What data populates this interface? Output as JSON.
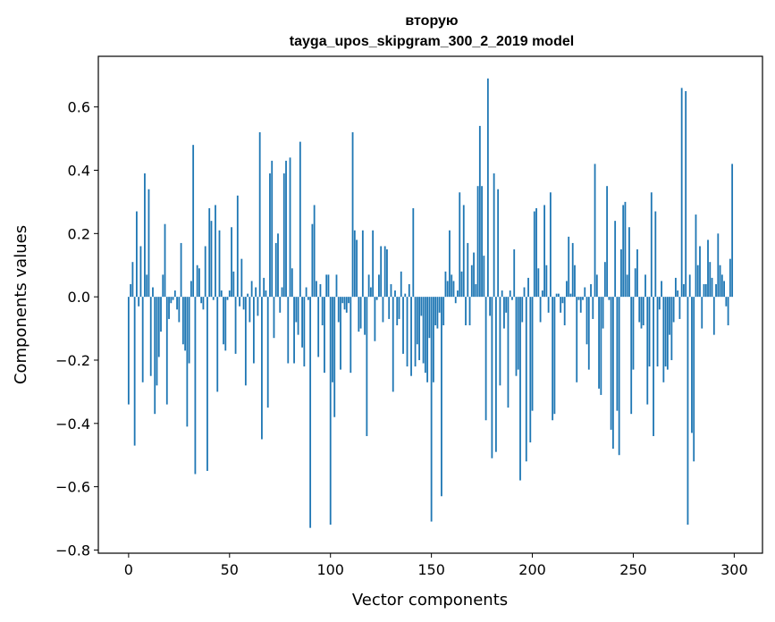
{
  "chart_data": {
    "type": "bar",
    "title_line1": "вторую",
    "title_line2": "tayga_upos_skipgram_300_2_2019 model",
    "xlabel": "Vector components",
    "ylabel": "Components values",
    "xlim": [
      -15,
      314
    ],
    "ylim": [
      -0.81,
      0.76
    ],
    "xticks": [
      0,
      50,
      100,
      150,
      200,
      250,
      300
    ],
    "yticks": [
      -0.8,
      -0.6,
      -0.4,
      -0.2,
      0.0,
      0.2,
      0.4,
      0.6
    ],
    "ytick_labels": [
      "−0.8",
      "−0.6",
      "−0.4",
      "−0.2",
      "0.0",
      "0.2",
      "0.4",
      "0.6"
    ],
    "bar_color": "#1f77b4",
    "grid": false,
    "values": [
      -0.34,
      0.04,
      0.11,
      -0.47,
      0.27,
      -0.03,
      0.16,
      -0.27,
      0.39,
      0.07,
      0.34,
      -0.25,
      0.03,
      -0.37,
      -0.28,
      -0.19,
      -0.11,
      0.07,
      0.23,
      -0.34,
      -0.07,
      -0.02,
      -0.01,
      0.02,
      -0.04,
      -0.08,
      0.17,
      -0.15,
      -0.17,
      -0.41,
      -0.21,
      0.05,
      0.48,
      -0.56,
      0.1,
      0.09,
      -0.02,
      -0.04,
      0.16,
      -0.55,
      0.28,
      0.24,
      -0.01,
      0.29,
      -0.3,
      0.21,
      0.02,
      -0.15,
      -0.17,
      -0.01,
      0.02,
      0.22,
      0.08,
      -0.18,
      0.32,
      -0.03,
      0.12,
      -0.04,
      -0.28,
      0.01,
      -0.08,
      0.05,
      -0.21,
      0.03,
      -0.06,
      0.52,
      -0.45,
      0.06,
      0.02,
      -0.35,
      0.39,
      0.43,
      -0.13,
      0.17,
      0.2,
      -0.05,
      0.03,
      0.39,
      0.43,
      -0.21,
      0.44,
      0.09,
      -0.21,
      -0.08,
      -0.12,
      0.49,
      -0.16,
      -0.22,
      0.03,
      -0.01,
      -0.73,
      0.23,
      0.29,
      0.05,
      -0.19,
      0.04,
      -0.09,
      -0.24,
      0.07,
      0.07,
      -0.72,
      -0.27,
      -0.38,
      0.07,
      -0.08,
      -0.23,
      -0.02,
      -0.04,
      -0.05,
      -0.02,
      -0.24,
      0.52,
      0.21,
      0.18,
      -0.11,
      -0.1,
      0.21,
      -0.12,
      -0.44,
      0.07,
      0.03,
      0.21,
      -0.14,
      -0.01,
      0.07,
      0.16,
      -0.08,
      0.16,
      0.15,
      -0.07,
      0.04,
      -0.3,
      0.02,
      -0.09,
      -0.07,
      0.08,
      -0.18,
      0.01,
      -0.22,
      0.04,
      -0.25,
      0.28,
      -0.22,
      -0.15,
      -0.2,
      -0.06,
      -0.21,
      -0.24,
      -0.27,
      -0.13,
      -0.71,
      -0.27,
      -0.09,
      -0.1,
      -0.05,
      -0.63,
      -0.09,
      0.08,
      0.05,
      0.21,
      0.07,
      0.05,
      -0.02,
      0.02,
      0.33,
      0.08,
      0.29,
      -0.09,
      0.17,
      -0.09,
      0.1,
      0.14,
      0.04,
      0.35,
      0.54,
      0.35,
      0.13,
      -0.39,
      0.69,
      -0.06,
      -0.51,
      0.39,
      -0.49,
      0.34,
      -0.28,
      0.02,
      -0.1,
      -0.05,
      -0.35,
      0.02,
      -0.01,
      0.15,
      -0.25,
      -0.23,
      -0.58,
      -0.08,
      0.03,
      -0.52,
      0.06,
      -0.46,
      -0.36,
      0.27,
      0.28,
      0.09,
      -0.08,
      0.02,
      0.29,
      0.1,
      -0.05,
      0.33,
      -0.39,
      -0.37,
      0.01,
      0.01,
      -0.05,
      -0.02,
      -0.09,
      0.05,
      0.19,
      0.01,
      0.17,
      0.1,
      -0.27,
      -0.01,
      -0.05,
      -0.01,
      0.03,
      -0.15,
      -0.23,
      0.04,
      -0.07,
      0.42,
      0.07,
      -0.29,
      -0.31,
      -0.1,
      0.11,
      0.35,
      -0.01,
      -0.42,
      -0.48,
      0.24,
      -0.36,
      -0.5,
      0.15,
      0.29,
      0.3,
      0.07,
      0.22,
      -0.37,
      -0.23,
      0.09,
      0.15,
      -0.08,
      -0.1,
      -0.09,
      0.07,
      -0.34,
      -0.22,
      0.33,
      -0.44,
      0.27,
      -0.22,
      -0.04,
      0.05,
      -0.27,
      -0.22,
      -0.23,
      -0.12,
      -0.2,
      -0.08,
      0.06,
      0.02,
      -0.07,
      0.66,
      0.04,
      0.65,
      -0.72,
      0.07,
      -0.43,
      -0.52,
      0.26,
      0.1,
      0.16,
      -0.1,
      0.04,
      0.04,
      0.18,
      0.11,
      0.06,
      -0.12,
      0.04,
      0.2,
      0.1,
      0.07,
      0.05,
      -0.03,
      -0.09,
      0.12,
      0.42
    ]
  }
}
